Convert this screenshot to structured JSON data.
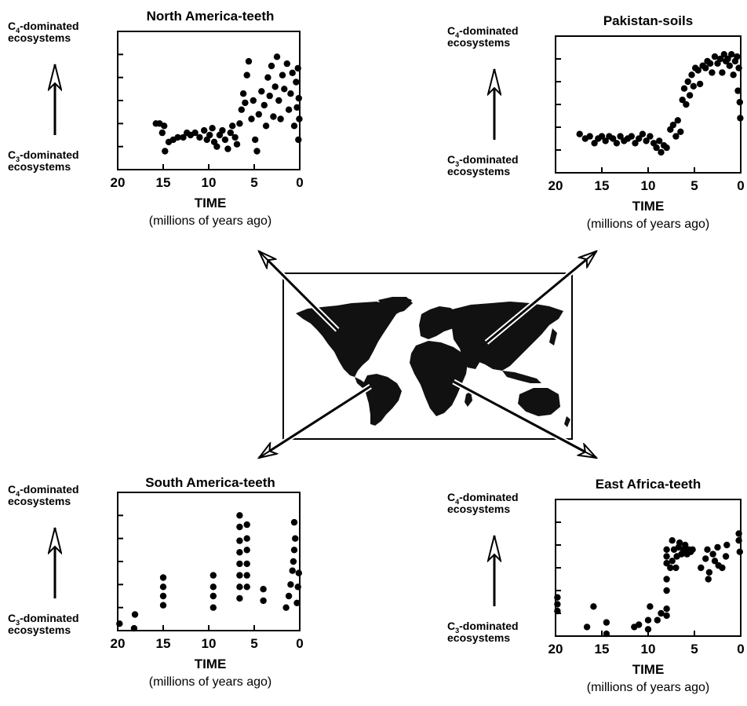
{
  "labels": {
    "c4_prefix": "C",
    "c4_sub": "4",
    "c4_suffix": "-dominated",
    "c3_prefix": "C",
    "c3_sub": "3",
    "c3_suffix": "-dominated",
    "ecosystems": "ecosystems",
    "time": "TIME",
    "time_unit": "(millions of years ago)"
  },
  "colors": {
    "ink": "#000000",
    "background": "#ffffff",
    "map": "#111111"
  },
  "chart_data": [
    {
      "type": "scatter",
      "title": "North America-teeth",
      "xlabel": "TIME",
      "xunit": "(millions of years ago)",
      "ylabel_top": "C4-dominated ecosystems",
      "ylabel_bottom": "C3-dominated ecosystems",
      "xlim": [
        20,
        0
      ],
      "ylim": [
        0,
        6
      ],
      "xticks": [
        20,
        15,
        10,
        5,
        0
      ],
      "yticks": [
        1,
        2,
        3,
        4,
        5
      ],
      "points": [
        [
          15.8,
          2.0
        ],
        [
          15.4,
          2.0
        ],
        [
          15.1,
          1.6
        ],
        [
          14.9,
          1.9
        ],
        [
          14.8,
          0.8
        ],
        [
          14.4,
          1.2
        ],
        [
          13.9,
          1.3
        ],
        [
          13.4,
          1.4
        ],
        [
          12.8,
          1.4
        ],
        [
          12.4,
          1.6
        ],
        [
          12.0,
          1.5
        ],
        [
          11.5,
          1.6
        ],
        [
          11.0,
          1.4
        ],
        [
          10.5,
          1.7
        ],
        [
          10.2,
          1.3
        ],
        [
          9.9,
          1.5
        ],
        [
          9.6,
          1.8
        ],
        [
          9.4,
          1.2
        ],
        [
          9.1,
          1.0
        ],
        [
          8.8,
          1.5
        ],
        [
          8.5,
          1.7
        ],
        [
          8.2,
          1.3
        ],
        [
          7.9,
          0.9
        ],
        [
          7.6,
          1.6
        ],
        [
          7.4,
          1.9
        ],
        [
          7.1,
          1.4
        ],
        [
          6.9,
          1.1
        ],
        [
          6.6,
          2.0
        ],
        [
          6.4,
          2.6
        ],
        [
          6.2,
          3.3
        ],
        [
          6.0,
          2.9
        ],
        [
          5.8,
          4.1
        ],
        [
          5.6,
          4.7
        ],
        [
          5.3,
          2.2
        ],
        [
          5.1,
          3.0
        ],
        [
          4.9,
          1.3
        ],
        [
          4.7,
          0.8
        ],
        [
          4.5,
          2.4
        ],
        [
          4.2,
          3.4
        ],
        [
          3.9,
          2.8
        ],
        [
          3.7,
          1.9
        ],
        [
          3.5,
          4.0
        ],
        [
          3.3,
          3.2
        ],
        [
          3.1,
          4.5
        ],
        [
          2.9,
          2.3
        ],
        [
          2.7,
          3.6
        ],
        [
          2.5,
          4.9
        ],
        [
          2.3,
          3.0
        ],
        [
          2.1,
          2.2
        ],
        [
          1.9,
          4.1
        ],
        [
          1.7,
          3.5
        ],
        [
          1.4,
          4.6
        ],
        [
          1.2,
          2.6
        ],
        [
          1.0,
          3.3
        ],
        [
          0.8,
          4.2
        ],
        [
          0.6,
          1.9
        ],
        [
          0.4,
          3.8
        ],
        [
          0.3,
          2.7
        ],
        [
          0.2,
          4.4
        ],
        [
          0.15,
          1.3
        ],
        [
          0.1,
          3.1
        ],
        [
          0.05,
          2.2
        ]
      ]
    },
    {
      "type": "scatter",
      "title": "Pakistan-soils",
      "xlabel": "TIME",
      "xunit": "(millions of years ago)",
      "ylabel_top": "C4-dominated ecosystems",
      "ylabel_bottom": "C3-dominated ecosystems",
      "xlim": [
        20,
        0
      ],
      "ylim": [
        0,
        6
      ],
      "xticks": [
        20,
        15,
        10,
        5,
        0
      ],
      "yticks": [
        1,
        2,
        3,
        4,
        5
      ],
      "points": [
        [
          17.4,
          1.7
        ],
        [
          16.8,
          1.5
        ],
        [
          16.3,
          1.6
        ],
        [
          15.8,
          1.3
        ],
        [
          15.4,
          1.5
        ],
        [
          15.0,
          1.6
        ],
        [
          14.6,
          1.4
        ],
        [
          14.2,
          1.6
        ],
        [
          13.8,
          1.5
        ],
        [
          13.4,
          1.3
        ],
        [
          13.0,
          1.6
        ],
        [
          12.6,
          1.4
        ],
        [
          12.2,
          1.5
        ],
        [
          11.8,
          1.6
        ],
        [
          11.4,
          1.3
        ],
        [
          11.0,
          1.5
        ],
        [
          10.6,
          1.7
        ],
        [
          10.2,
          1.4
        ],
        [
          9.8,
          1.6
        ],
        [
          9.4,
          1.3
        ],
        [
          9.1,
          1.1
        ],
        [
          8.8,
          1.4
        ],
        [
          8.6,
          0.9
        ],
        [
          8.3,
          1.2
        ],
        [
          8.0,
          1.1
        ],
        [
          7.6,
          1.9
        ],
        [
          7.3,
          2.1
        ],
        [
          7.0,
          1.6
        ],
        [
          6.8,
          2.3
        ],
        [
          6.5,
          1.8
        ],
        [
          6.3,
          3.2
        ],
        [
          6.1,
          3.7
        ],
        [
          5.9,
          3.0
        ],
        [
          5.7,
          4.0
        ],
        [
          5.5,
          3.4
        ],
        [
          5.3,
          4.3
        ],
        [
          5.1,
          3.8
        ],
        [
          4.9,
          4.6
        ],
        [
          4.6,
          4.5
        ],
        [
          4.4,
          3.9
        ],
        [
          4.1,
          4.7
        ],
        [
          3.8,
          4.6
        ],
        [
          3.6,
          4.9
        ],
        [
          3.3,
          4.8
        ],
        [
          3.1,
          4.4
        ],
        [
          2.8,
          5.1
        ],
        [
          2.5,
          4.8
        ],
        [
          2.2,
          5.0
        ],
        [
          2.0,
          4.4
        ],
        [
          1.8,
          5.2
        ],
        [
          1.6,
          4.9
        ],
        [
          1.4,
          5.0
        ],
        [
          1.2,
          4.7
        ],
        [
          1.0,
          5.2
        ],
        [
          0.8,
          4.3
        ],
        [
          0.6,
          4.9
        ],
        [
          0.4,
          5.1
        ],
        [
          0.3,
          3.6
        ],
        [
          0.2,
          4.6
        ],
        [
          0.1,
          3.1
        ],
        [
          0.05,
          2.4
        ]
      ]
    },
    {
      "type": "scatter",
      "title": "South America-teeth",
      "xlabel": "TIME",
      "xunit": "(millions of years ago)",
      "ylabel_top": "C4-dominated ecosystems",
      "ylabel_bottom": "C3-dominated ecosystems",
      "xlim": [
        20,
        0
      ],
      "ylim": [
        0,
        6
      ],
      "xticks": [
        20,
        15,
        10,
        5,
        0
      ],
      "yticks": [
        1,
        2,
        3,
        4,
        5
      ],
      "points": [
        [
          19.8,
          0.3
        ],
        [
          18.2,
          0.1
        ],
        [
          18.1,
          0.7
        ],
        [
          15.0,
          1.1
        ],
        [
          15.0,
          1.5
        ],
        [
          15.0,
          1.9
        ],
        [
          15.0,
          2.3
        ],
        [
          9.5,
          1.0
        ],
        [
          9.5,
          1.5
        ],
        [
          9.5,
          1.9
        ],
        [
          9.5,
          2.4
        ],
        [
          6.6,
          1.4
        ],
        [
          6.6,
          1.9
        ],
        [
          6.6,
          2.4
        ],
        [
          6.6,
          2.9
        ],
        [
          6.6,
          3.4
        ],
        [
          6.6,
          3.9
        ],
        [
          6.6,
          4.5
        ],
        [
          6.6,
          5.0
        ],
        [
          5.8,
          1.9
        ],
        [
          5.8,
          2.4
        ],
        [
          5.8,
          2.9
        ],
        [
          5.8,
          3.5
        ],
        [
          5.8,
          4.0
        ],
        [
          5.8,
          4.6
        ],
        [
          4.0,
          1.3
        ],
        [
          4.0,
          1.8
        ],
        [
          1.5,
          1.0
        ],
        [
          1.2,
          1.5
        ],
        [
          1.0,
          2.0
        ],
        [
          0.8,
          2.6
        ],
        [
          0.7,
          3.0
        ],
        [
          0.6,
          3.5
        ],
        [
          0.5,
          4.0
        ],
        [
          0.6,
          4.7
        ],
        [
          0.3,
          1.2
        ],
        [
          0.2,
          1.9
        ],
        [
          0.1,
          2.5
        ]
      ]
    },
    {
      "type": "scatter",
      "title": "East Africa-teeth",
      "xlabel": "TIME",
      "xunit": "(millions of years ago)",
      "ylabel_top": "C4-dominated ecosystems",
      "ylabel_bottom": "C3-dominated ecosystems",
      "xlim": [
        20,
        0
      ],
      "ylim": [
        0,
        6
      ],
      "xticks": [
        20,
        15,
        10,
        5,
        0
      ],
      "yticks": [
        1,
        2,
        3,
        4,
        5
      ],
      "points": [
        [
          19.8,
          1.1
        ],
        [
          19.8,
          1.4
        ],
        [
          19.8,
          1.7
        ],
        [
          16.6,
          0.4
        ],
        [
          15.9,
          1.3
        ],
        [
          14.5,
          0.1
        ],
        [
          14.5,
          0.6
        ],
        [
          11.5,
          0.4
        ],
        [
          11.0,
          0.5
        ],
        [
          10.0,
          0.3
        ],
        [
          10.0,
          0.7
        ],
        [
          9.8,
          1.3
        ],
        [
          9.0,
          0.7
        ],
        [
          8.6,
          1.0
        ],
        [
          8.0,
          0.9
        ],
        [
          8.0,
          1.2
        ],
        [
          8.0,
          2.0
        ],
        [
          8.0,
          2.5
        ],
        [
          8.0,
          3.2
        ],
        [
          8.0,
          3.5
        ],
        [
          8.0,
          3.8
        ],
        [
          7.6,
          3.0
        ],
        [
          7.4,
          3.3
        ],
        [
          7.4,
          4.2
        ],
        [
          7.2,
          3.8
        ],
        [
          7.0,
          3.0
        ],
        [
          6.9,
          3.5
        ],
        [
          6.7,
          3.9
        ],
        [
          6.6,
          4.1
        ],
        [
          6.4,
          3.6
        ],
        [
          6.2,
          3.8
        ],
        [
          6.0,
          4.0
        ],
        [
          5.8,
          3.6
        ],
        [
          5.6,
          3.8
        ],
        [
          5.4,
          3.7
        ],
        [
          5.2,
          3.8
        ],
        [
          4.3,
          3.0
        ],
        [
          3.8,
          3.4
        ],
        [
          3.6,
          3.8
        ],
        [
          3.5,
          2.5
        ],
        [
          3.4,
          2.8
        ],
        [
          3.0,
          3.6
        ],
        [
          2.8,
          3.3
        ],
        [
          2.5,
          3.9
        ],
        [
          2.4,
          3.1
        ],
        [
          2.0,
          3.0
        ],
        [
          1.6,
          3.5
        ],
        [
          1.5,
          4.0
        ],
        [
          0.2,
          4.5
        ],
        [
          0.2,
          4.2
        ],
        [
          0.1,
          3.7
        ]
      ]
    }
  ]
}
